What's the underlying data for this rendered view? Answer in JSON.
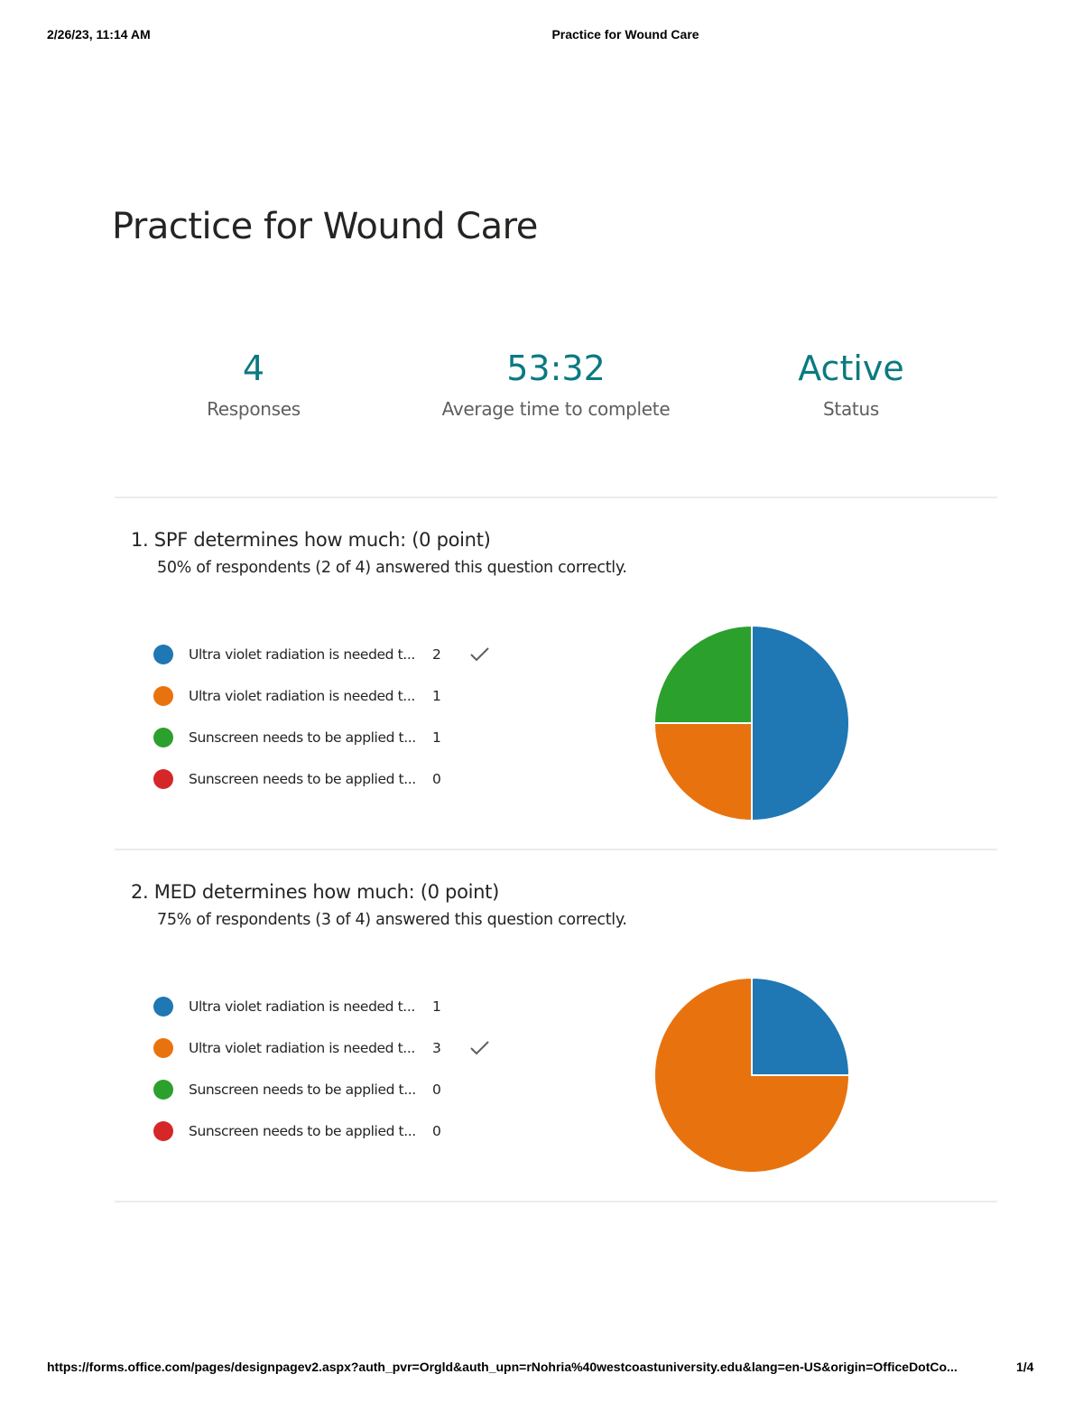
{
  "print_header": {
    "datetime": "2/26/23, 11:14 AM",
    "title": "Practice for Wound Care"
  },
  "form": {
    "title": "Practice for Wound Care"
  },
  "stats": [
    {
      "value": "4",
      "label": "Responses"
    },
    {
      "value": "53:32",
      "label": "Average time to complete"
    },
    {
      "value": "Active",
      "label": "Status"
    }
  ],
  "questions": [
    {
      "title": "1.  SPF determines how much: (0 point)",
      "summary": "50% of respondents (2 of 4) answered this question correctly.",
      "options": [
        {
          "label": "Ultra violet radiation is needed t...",
          "count": "2",
          "color": "#1f77b4",
          "correct": true
        },
        {
          "label": "Ultra violet radiation is needed t...",
          "count": "1",
          "color": "#e8730e",
          "correct": false
        },
        {
          "label": "Sunscreen needs to be applied t...",
          "count": "1",
          "color": "#2ca02c",
          "correct": false
        },
        {
          "label": "Sunscreen needs to be applied t...",
          "count": "0",
          "color": "#d62728",
          "correct": false
        }
      ]
    },
    {
      "title": "2.  MED determines how much: (0 point)",
      "summary": "75% of respondents (3 of 4) answered this question correctly.",
      "options": [
        {
          "label": "Ultra violet radiation is needed t...",
          "count": "1",
          "color": "#1f77b4",
          "correct": false
        },
        {
          "label": "Ultra violet radiation is needed t...",
          "count": "3",
          "color": "#e8730e",
          "correct": true
        },
        {
          "label": "Sunscreen needs to be applied t...",
          "count": "0",
          "color": "#2ca02c",
          "correct": false
        },
        {
          "label": "Sunscreen needs to be applied t...",
          "count": "0",
          "color": "#d62728",
          "correct": false
        }
      ]
    }
  ],
  "chart_data": [
    {
      "type": "pie",
      "categories": [
        "Ultra violet radiation is needed t...",
        "Ultra violet radiation is needed t...",
        "Sunscreen needs to be applied t...",
        "Sunscreen needs to be applied t..."
      ],
      "values": [
        2,
        1,
        1,
        0
      ],
      "colors": [
        "#1f77b4",
        "#e8730e",
        "#2ca02c",
        "#d62728"
      ]
    },
    {
      "type": "pie",
      "categories": [
        "Ultra violet radiation is needed t...",
        "Ultra violet radiation is needed t...",
        "Sunscreen needs to be applied t...",
        "Sunscreen needs to be applied t..."
      ],
      "values": [
        1,
        3,
        0,
        0
      ],
      "colors": [
        "#1f77b4",
        "#e8730e",
        "#2ca02c",
        "#d62728"
      ]
    }
  ],
  "print_footer": {
    "url": "https://forms.office.com/pages/designpagev2.aspx?auth_pvr=Orgld&auth_upn=rNohria%40westcoastuniversity.edu&lang=en-US&origin=OfficeDotCo...",
    "page": "1/4"
  }
}
